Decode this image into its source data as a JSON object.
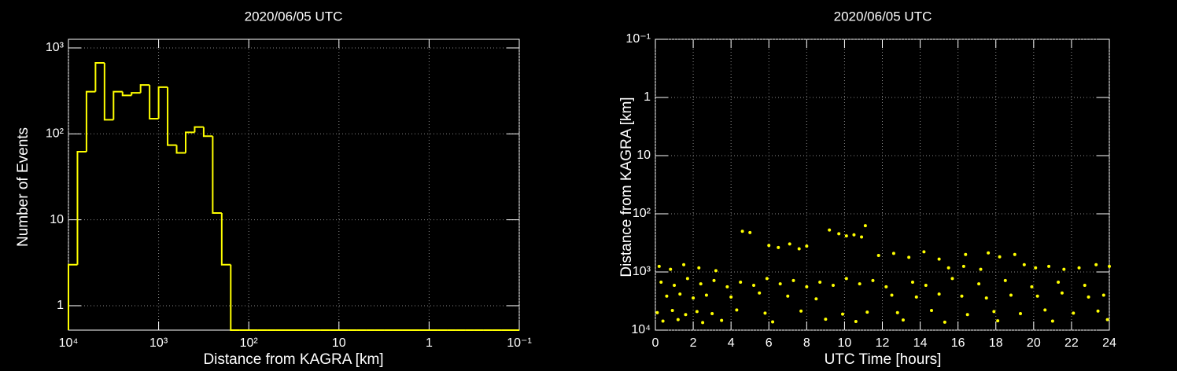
{
  "chart_data": [
    {
      "type": "histogram",
      "title": "2020/06/05 UTC",
      "xlabel": "Distance from KAGRA [km]",
      "ylabel": "Number of Events",
      "xlog": true,
      "ylog": true,
      "grid": true,
      "color": "#ffff00",
      "xlim": [
        10000,
        0.1
      ],
      "ylim": [
        0.52,
        1260
      ],
      "xticks": [
        {
          "value": 10000,
          "label": "10⁴"
        },
        {
          "value": 1000,
          "label": "10³"
        },
        {
          "value": 100,
          "label": "10²"
        },
        10,
        1,
        {
          "value": 0.1,
          "label": "10⁻¹"
        }
      ],
      "yticks": [
        1,
        10,
        {
          "value": 100,
          "label": "10²"
        },
        {
          "value": 1000,
          "label": "10³"
        }
      ],
      "bins": [
        10000,
        7943,
        6310,
        5012,
        3981,
        3162,
        2512,
        1995,
        1585,
        1259,
        1000,
        794.3,
        631,
        501.2,
        398.1,
        316.2,
        251.2,
        199.5,
        158.5,
        125.9,
        100,
        79.43,
        63.1,
        50.12,
        39.81,
        31.62,
        25.12,
        19.95,
        15.85,
        12.59,
        10,
        7.943,
        6.31,
        5.012,
        3.981,
        3.162,
        2.512,
        1.995,
        1.585,
        1.259,
        1,
        0.7943,
        0.631,
        0.5012,
        0.3981,
        0.3162,
        0.2512,
        0.1995,
        0.1585,
        0.1259,
        0.1
      ],
      "values": [
        3,
        62,
        310,
        670,
        146,
        310,
        280,
        300,
        370,
        150,
        350,
        74,
        60,
        104,
        120,
        94,
        12,
        3,
        0,
        0,
        0,
        0,
        0,
        0,
        0,
        0,
        0,
        0,
        0,
        0,
        0,
        0,
        0,
        0,
        0,
        0,
        0,
        0,
        0,
        0,
        0,
        0,
        0,
        0,
        0,
        0,
        0,
        0,
        0,
        0
      ]
    },
    {
      "type": "scatter",
      "title": "2020/06/05 UTC",
      "xlabel": "UTC Time [hours]",
      "ylabel": "Distance from KAGRA [km]",
      "ylog": true,
      "grid": true,
      "color": "#ffff00",
      "xlim": [
        0,
        24
      ],
      "ylim": [
        10000,
        0.1
      ],
      "xticks": [
        0,
        2,
        4,
        6,
        8,
        10,
        12,
        14,
        16,
        18,
        20,
        22,
        24
      ],
      "yticks": [
        {
          "value": 10000,
          "label": "10⁴"
        },
        {
          "value": 1000,
          "label": "10³"
        },
        {
          "value": 100,
          "label": "10²"
        },
        10,
        1,
        {
          "value": 0.1,
          "label": "10⁻¹"
        }
      ],
      "x": [
        0.3,
        1.0,
        1.7,
        2.4,
        3.1,
        3.8,
        4.5,
        5.2,
        5.9,
        6.6,
        7.3,
        8.0,
        8.7,
        9.4,
        10.1,
        10.8,
        11.5,
        12.2,
        13.6,
        14.3,
        15.7,
        17.1,
        18.5,
        19.9,
        21.3,
        22.7,
        0.6,
        1.3,
        2.0,
        2.7,
        4.0,
        5.5,
        7.0,
        8.5,
        12.5,
        13.8,
        15.0,
        16.2,
        17.5,
        18.8,
        20.2,
        21.5,
        22.9,
        23.7,
        0.1,
        0.9,
        1.6,
        2.2,
        3.0,
        4.3,
        5.8,
        7.7,
        9.9,
        11.2,
        12.8,
        14.6,
        16.5,
        17.9,
        19.3,
        20.6,
        22.1,
        23.4,
        0.4,
        1.2,
        2.5,
        3.5,
        6.2,
        9.0,
        10.6,
        13.1,
        15.3,
        18.1,
        21.0,
        23.9,
        0.2,
        0.8,
        1.5,
        2.3,
        3.2,
        15.5,
        16.3,
        17.2,
        19.5,
        20.1,
        20.8,
        21.6,
        22.4,
        23.3,
        24.0,
        11.8,
        12.6,
        13.4,
        14.2,
        15.0,
        16.4,
        17.6,
        18.2,
        19.0,
        6.0,
        6.5,
        7.1,
        7.6,
        8.0,
        4.6,
        5.0,
        9.2,
        9.7,
        10.1,
        10.5,
        10.9,
        11.1
      ],
      "y": [
        1500,
        1700,
        1300,
        1600,
        1400,
        1800,
        1500,
        1700,
        1300,
        1600,
        1400,
        1800,
        1500,
        1700,
        1300,
        1600,
        1400,
        1800,
        1500,
        1700,
        1300,
        1600,
        1400,
        1800,
        1500,
        1700,
        2600,
        2400,
        2800,
        2500,
        2700,
        2300,
        2600,
        2900,
        2500,
        2700,
        2400,
        2600,
        2800,
        2500,
        2600,
        2300,
        2700,
        2500,
        5000,
        4600,
        5400,
        4800,
        5200,
        4500,
        5100,
        4700,
        5300,
        4900,
        5000,
        4600,
        5400,
        4800,
        5200,
        4500,
        5100,
        4700,
        7000,
        6600,
        7400,
        6800,
        7200,
        6500,
        7100,
        6700,
        7300,
        6900,
        7000,
        6600,
        800,
        900,
        750,
        850,
        950,
        850,
        800,
        900,
        750,
        850,
        800,
        900,
        850,
        750,
        800,
        520,
        480,
        560,
        450,
        600,
        500,
        470,
        550,
        500,
        350,
        380,
        330,
        400,
        360,
        200,
        210,
        190,
        220,
        240,
        230,
        250,
        160
      ]
    }
  ]
}
